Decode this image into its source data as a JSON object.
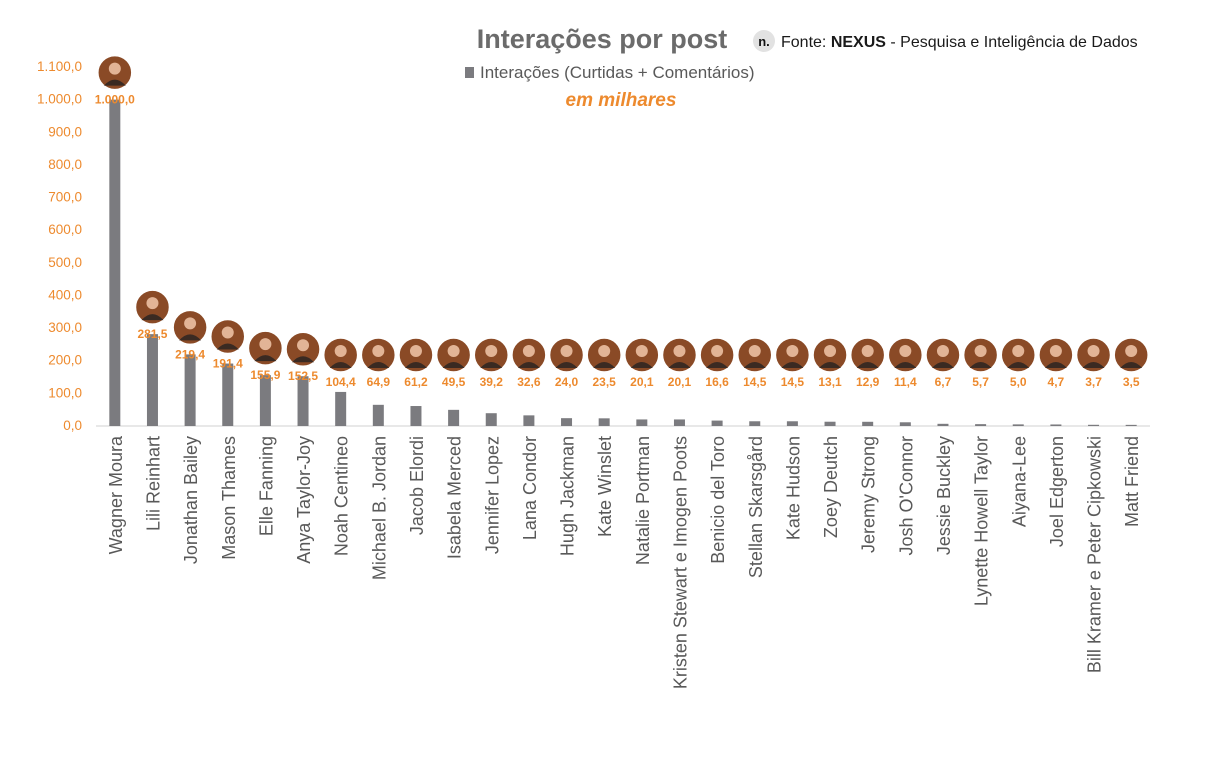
{
  "source": {
    "prefix": "Fonte: ",
    "brand": "NEXUS",
    "suffix": " - Pesquisa e Inteligência de Dados",
    "logo_letter": "n."
  },
  "colors": {
    "bar": "#7b7b7f",
    "accent": "#ed8a2e",
    "axis": "#d0d0d0",
    "avatar_bg": "#8a4a26"
  },
  "chart_data": {
    "type": "bar",
    "title": "Interações por post",
    "subtitle": "em milhares",
    "legend": {
      "position": "top",
      "entries": [
        "Interações (Curtidas + Comentários)"
      ]
    },
    "ylim": [
      0,
      1100
    ],
    "yticks": [
      "0,0",
      "100,0",
      "200,0",
      "300,0",
      "400,0",
      "500,0",
      "600,0",
      "700,0",
      "800,0",
      "900,0",
      "1.000,0",
      "1.100,0"
    ],
    "grid": false,
    "categories": [
      "Wagner Moura",
      "Lili Reinhart",
      "Jonathan Bailey",
      "Mason Thames",
      "Elle Fanning",
      "Anya Taylor-Joy",
      "Noah Centineo",
      "Michael B. Jordan",
      "Jacob Elordi",
      "Isabela Merced",
      "Jennifer Lopez",
      "Lana Condor",
      "Hugh Jackman",
      "Kate Winslet",
      "Natalie Portman",
      "Kristen Stewart e Imogen Poots",
      "Benicio del Toro",
      "Stellan Skarsgård",
      "Kate Hudson",
      "Zoey Deutch",
      "Jeremy Strong",
      "Josh O'Connor",
      "Jessie Buckley",
      "Lynette Howell Taylor",
      "Aiyana-Lee",
      "Joel Edgerton",
      "Bill Kramer e Peter Cipkowski",
      "Matt Friend"
    ],
    "series": [
      {
        "name": "Interações (Curtidas + Comentários)",
        "values": [
          1000.0,
          281.5,
          219.4,
          191.4,
          155.9,
          152.5,
          104.4,
          64.9,
          61.2,
          49.5,
          39.2,
          32.6,
          24.0,
          23.5,
          20.1,
          20.1,
          16.6,
          14.5,
          14.5,
          13.1,
          12.9,
          11.4,
          6.7,
          5.7,
          5.0,
          4.7,
          3.7,
          3.5
        ],
        "labels": [
          "1.000,0",
          "281,5",
          "219,4",
          "191,4",
          "155,9",
          "152,5",
          "104,4",
          "64,9",
          "61,2",
          "49,5",
          "39,2",
          "32,6",
          "24,0",
          "23,5",
          "20,1",
          "20,1",
          "16,6",
          "14,5",
          "14,5",
          "13,1",
          "12,9",
          "11,4",
          "6,7",
          "5,7",
          "5,0",
          "4,7",
          "3,7",
          "3,5"
        ]
      }
    ]
  }
}
